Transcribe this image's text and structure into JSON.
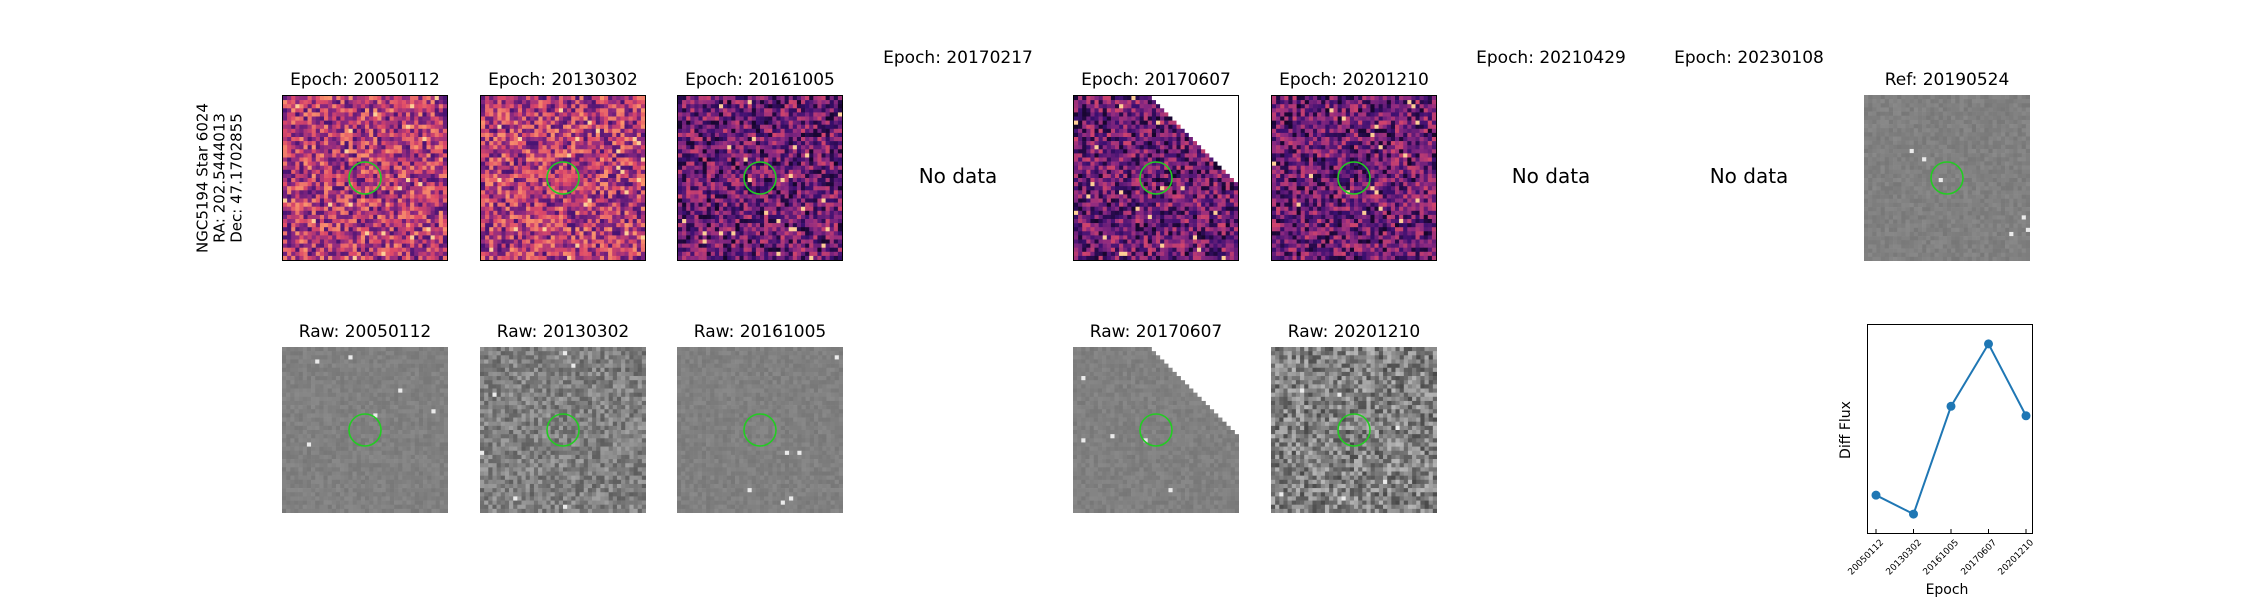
{
  "star_info": {
    "line1": "NGC5194 Star 6024",
    "line2": "RA: 202.5444013",
    "line3": "Dec: 47.1702855"
  },
  "diff_titles": [
    "Epoch: 20050112",
    "Epoch: 20130302",
    "Epoch: 20161005",
    "Epoch: 20170217",
    "Epoch: 20170607",
    "Epoch: 20201210",
    "Epoch: 20210429",
    "Epoch: 20230108"
  ],
  "ref_title": "Ref: 20190524",
  "raw_titles": [
    "Raw: 20050112",
    "Raw: 20130302",
    "Raw: 20161005",
    "Raw: 20170607",
    "Raw: 20201210"
  ],
  "no_data_text": "No data",
  "colors": {
    "circle": "#22cc22",
    "line": "#1f77b4",
    "magma_low": "#1b0c41",
    "magma_mid": "#b63679",
    "magma_high": "#fcfdbf"
  },
  "chart_data": {
    "type": "line",
    "x": [
      "20050112",
      "20130302",
      "20161005",
      "20170607",
      "20201210"
    ],
    "values": [
      0.15,
      0.05,
      0.62,
      0.95,
      0.57
    ],
    "xlabel": "Epoch",
    "ylabel": "Diff Flux",
    "ylim": [
      -0.05,
      1.05
    ],
    "yticks_shown": false,
    "grid": false
  }
}
